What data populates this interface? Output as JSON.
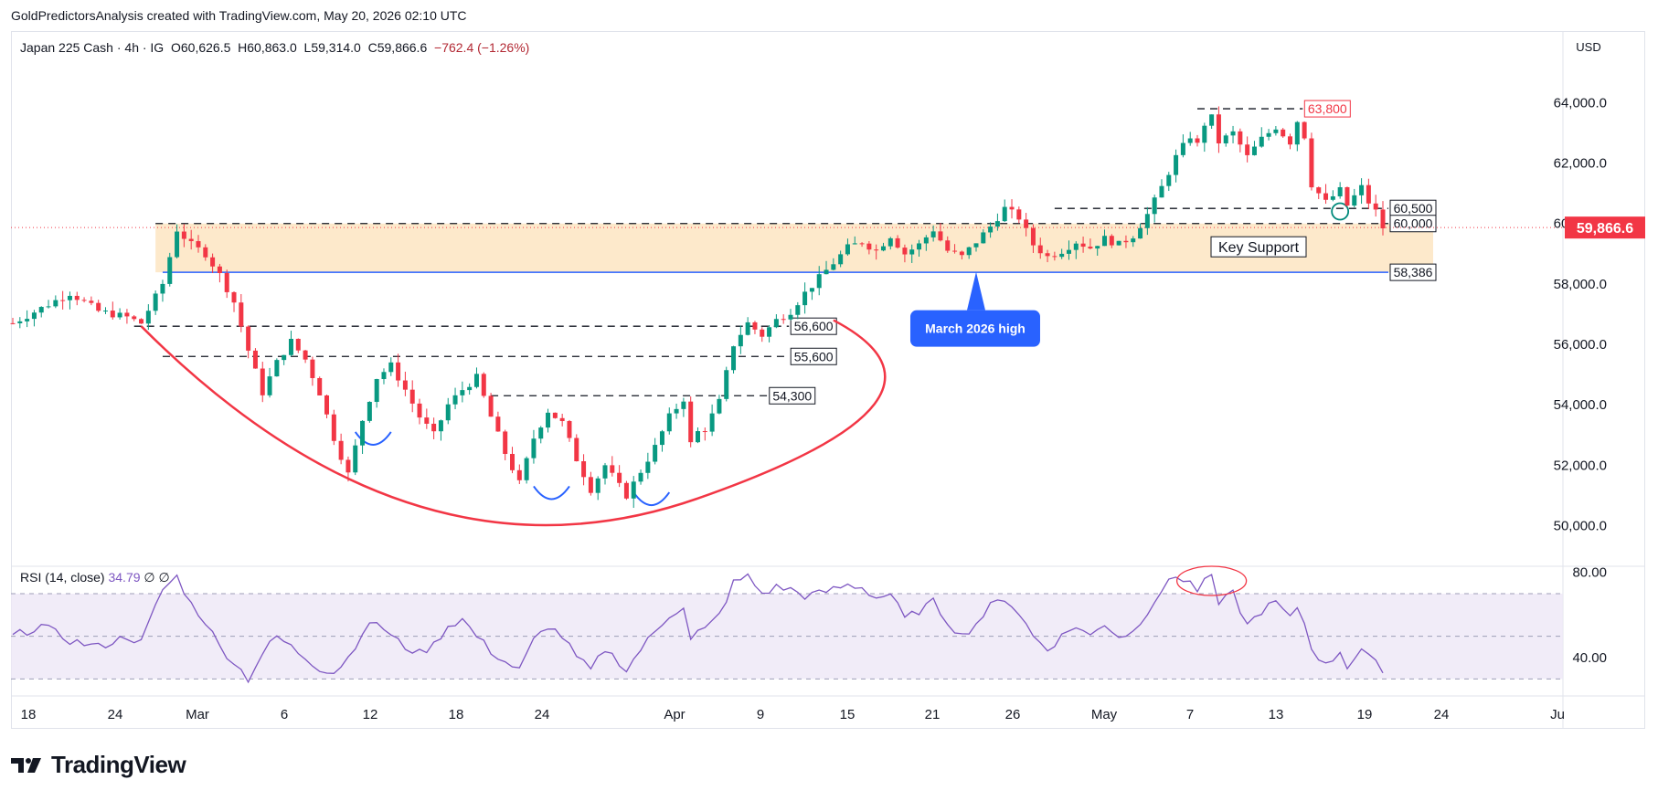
{
  "header": {
    "credit": "GoldPredictorsAnalysis created with TradingView.com, May 20, 2026 02:10 UTC"
  },
  "legend": {
    "symbol": "Japan 225 Cash · 4h · IG",
    "open": "O60,626.5",
    "high": "H60,863.0",
    "low": "L59,314.0",
    "close": "C59,866.6",
    "change": "−762.4 (−1.26%)"
  },
  "rsi_legend": {
    "label": "RSI (14, close)",
    "value": "34.79",
    "extra": "∅ ∅"
  },
  "currency": "USD",
  "brand": "TradingView",
  "colors": {
    "up": "#089981",
    "down": "#f23645",
    "support_zone": "#fde8c8",
    "rsi_line": "#7e57c2",
    "rsi_band": "#ede7f6",
    "cup_curve": "#f23645",
    "handle_curves": "#2962ff",
    "callout": "#2962ff",
    "last_price": "#f23645"
  },
  "chart_data": [
    {
      "type": "candlestick",
      "title": "Japan 225 Cash · 4h · IG",
      "ylim": [
        49500,
        64800
      ],
      "y_ticks": [
        "64,000.0",
        "62,000.0",
        "60,000.0",
        "58,000.0",
        "56,000.0",
        "54,000.0",
        "52,000.0",
        "50,000.0"
      ],
      "x_ticks": [
        "18",
        "24",
        "Mar",
        "6",
        "12",
        "18",
        "24",
        "Apr",
        "9",
        "15",
        "21",
        "26",
        "May",
        "7",
        "13",
        "19",
        "24",
        "Ju"
      ],
      "last_price": {
        "value": 59866.6,
        "label": "59,866.6"
      },
      "path_approx": [
        [
          0,
          56700
        ],
        [
          4,
          57200
        ],
        [
          8,
          57700
        ],
        [
          12,
          57100
        ],
        [
          16,
          56900
        ],
        [
          18,
          56700
        ],
        [
          21,
          58000
        ],
        [
          23,
          59800
        ],
        [
          25,
          59300
        ],
        [
          27,
          59000
        ],
        [
          29,
          58300
        ],
        [
          31,
          57400
        ],
        [
          33,
          55800
        ],
        [
          35,
          54400
        ],
        [
          37,
          55400
        ],
        [
          39,
          56100
        ],
        [
          41,
          55500
        ],
        [
          43,
          54400
        ],
        [
          45,
          52900
        ],
        [
          47,
          51700
        ],
        [
          49,
          53500
        ],
        [
          51,
          54900
        ],
        [
          53,
          55300
        ],
        [
          55,
          54500
        ],
        [
          57,
          53600
        ],
        [
          59,
          53000
        ],
        [
          61,
          54000
        ],
        [
          63,
          54500
        ],
        [
          65,
          54900
        ],
        [
          67,
          53600
        ],
        [
          69,
          52400
        ],
        [
          71,
          51400
        ],
        [
          73,
          52900
        ],
        [
          75,
          53800
        ],
        [
          77,
          53400
        ],
        [
          79,
          52200
        ],
        [
          81,
          51200
        ],
        [
          83,
          52000
        ],
        [
          85,
          51300
        ],
        [
          86,
          51000
        ],
        [
          88,
          51800
        ],
        [
          90,
          52600
        ],
        [
          92,
          53600
        ],
        [
          94,
          54200
        ],
        [
          95,
          52700
        ],
        [
          96,
          53100
        ],
        [
          97,
          53200
        ],
        [
          99,
          54100
        ],
        [
          101,
          56000
        ],
        [
          103,
          56700
        ],
        [
          105,
          56300
        ],
        [
          107,
          56800
        ],
        [
          109,
          57100
        ],
        [
          111,
          57700
        ],
        [
          113,
          58200
        ],
        [
          115,
          58700
        ],
        [
          117,
          59200
        ],
        [
          119,
          59400
        ],
        [
          121,
          59100
        ],
        [
          123,
          59600
        ],
        [
          125,
          59000
        ],
        [
          127,
          59300
        ],
        [
          129,
          59800
        ],
        [
          131,
          59100
        ],
        [
          133,
          58900
        ],
        [
          135,
          59400
        ],
        [
          137,
          59900
        ],
        [
          139,
          60500
        ],
        [
          141,
          60200
        ],
        [
          143,
          59300
        ],
        [
          145,
          58900
        ],
        [
          147,
          59100
        ],
        [
          149,
          59400
        ],
        [
          151,
          59200
        ],
        [
          153,
          59500
        ],
        [
          155,
          59300
        ],
        [
          157,
          59600
        ],
        [
          159,
          60300
        ],
        [
          161,
          61200
        ],
        [
          163,
          62200
        ],
        [
          165,
          62900
        ],
        [
          166,
          62600
        ],
        [
          167,
          63300
        ],
        [
          168,
          63500
        ],
        [
          169,
          62700
        ],
        [
          171,
          63000
        ],
        [
          173,
          62200
        ],
        [
          175,
          62800
        ],
        [
          177,
          63200
        ],
        [
          179,
          62700
        ],
        [
          180,
          63400
        ],
        [
          181,
          62900
        ],
        [
          182,
          61300
        ],
        [
          184,
          60700
        ],
        [
          186,
          61100
        ],
        [
          187,
          60600
        ],
        [
          188,
          60900
        ],
        [
          189,
          61200
        ],
        [
          190,
          60700
        ],
        [
          191,
          60400
        ],
        [
          192,
          59866
        ]
      ]
    },
    {
      "type": "line",
      "title": "RSI (14, close)",
      "ylim": [
        25,
        82
      ],
      "y_ticks": [
        "80.00",
        "40.00"
      ],
      "bands": [
        30,
        50,
        70
      ],
      "last_value": 34.79,
      "path_approx": [
        [
          0,
          50
        ],
        [
          4,
          55
        ],
        [
          8,
          48
        ],
        [
          12,
          45
        ],
        [
          16,
          50
        ],
        [
          18,
          47
        ],
        [
          21,
          72
        ],
        [
          23,
          78
        ],
        [
          25,
          65
        ],
        [
          27,
          57
        ],
        [
          29,
          45
        ],
        [
          31,
          38
        ],
        [
          33,
          30
        ],
        [
          35,
          42
        ],
        [
          37,
          50
        ],
        [
          39,
          45
        ],
        [
          41,
          40
        ],
        [
          43,
          35
        ],
        [
          45,
          33
        ],
        [
          47,
          40
        ],
        [
          49,
          52
        ],
        [
          51,
          57
        ],
        [
          53,
          50
        ],
        [
          55,
          45
        ],
        [
          57,
          42
        ],
        [
          59,
          46
        ],
        [
          61,
          55
        ],
        [
          63,
          58
        ],
        [
          65,
          50
        ],
        [
          67,
          43
        ],
        [
          69,
          38
        ],
        [
          71,
          34
        ],
        [
          73,
          48
        ],
        [
          75,
          55
        ],
        [
          77,
          50
        ],
        [
          79,
          40
        ],
        [
          81,
          34
        ],
        [
          83,
          44
        ],
        [
          85,
          38
        ],
        [
          86,
          34
        ],
        [
          88,
          44
        ],
        [
          90,
          52
        ],
        [
          92,
          60
        ],
        [
          94,
          64
        ],
        [
          95,
          48
        ],
        [
          96,
          52
        ],
        [
          97,
          53
        ],
        [
          99,
          60
        ],
        [
          101,
          75
        ],
        [
          103,
          78
        ],
        [
          105,
          70
        ],
        [
          107,
          73
        ],
        [
          109,
          72
        ],
        [
          111,
          69
        ],
        [
          113,
          70
        ],
        [
          115,
          72
        ],
        [
          117,
          74
        ],
        [
          119,
          73
        ],
        [
          121,
          68
        ],
        [
          123,
          70
        ],
        [
          125,
          58
        ],
        [
          127,
          62
        ],
        [
          129,
          66
        ],
        [
          131,
          57
        ],
        [
          133,
          50
        ],
        [
          135,
          56
        ],
        [
          137,
          64
        ],
        [
          139,
          68
        ],
        [
          141,
          61
        ],
        [
          143,
          50
        ],
        [
          145,
          44
        ],
        [
          147,
          50
        ],
        [
          149,
          55
        ],
        [
          151,
          50
        ],
        [
          153,
          56
        ],
        [
          155,
          50
        ],
        [
          157,
          52
        ],
        [
          159,
          62
        ],
        [
          161,
          72
        ],
        [
          163,
          78
        ],
        [
          165,
          76
        ],
        [
          166,
          70
        ],
        [
          167,
          78
        ],
        [
          168,
          77
        ],
        [
          169,
          65
        ],
        [
          171,
          70
        ],
        [
          173,
          55
        ],
        [
          175,
          62
        ],
        [
          177,
          66
        ],
        [
          179,
          58
        ],
        [
          180,
          64
        ],
        [
          181,
          56
        ],
        [
          182,
          45
        ],
        [
          184,
          36
        ],
        [
          186,
          43
        ],
        [
          187,
          36
        ],
        [
          188,
          40
        ],
        [
          189,
          44
        ],
        [
          190,
          40
        ],
        [
          191,
          37
        ],
        [
          192,
          34.79
        ]
      ]
    }
  ],
  "levels": [
    {
      "label": "63,800",
      "value": 63800,
      "style": "dashed"
    },
    {
      "label": "60,500",
      "value": 60500,
      "style": "dashed"
    },
    {
      "label": "60,000",
      "value": 60000,
      "style": "dashed"
    },
    {
      "label": "58,386",
      "value": 58386,
      "style": "solid"
    },
    {
      "label": "56,600",
      "value": 56600,
      "style": "dashed"
    },
    {
      "label": "55,600",
      "value": 55600,
      "style": "dashed"
    },
    {
      "label": "54,300",
      "value": 54300,
      "style": "dashed"
    }
  ],
  "annotations": {
    "key_support": "Key Support",
    "march_high": "March 2026 high"
  }
}
